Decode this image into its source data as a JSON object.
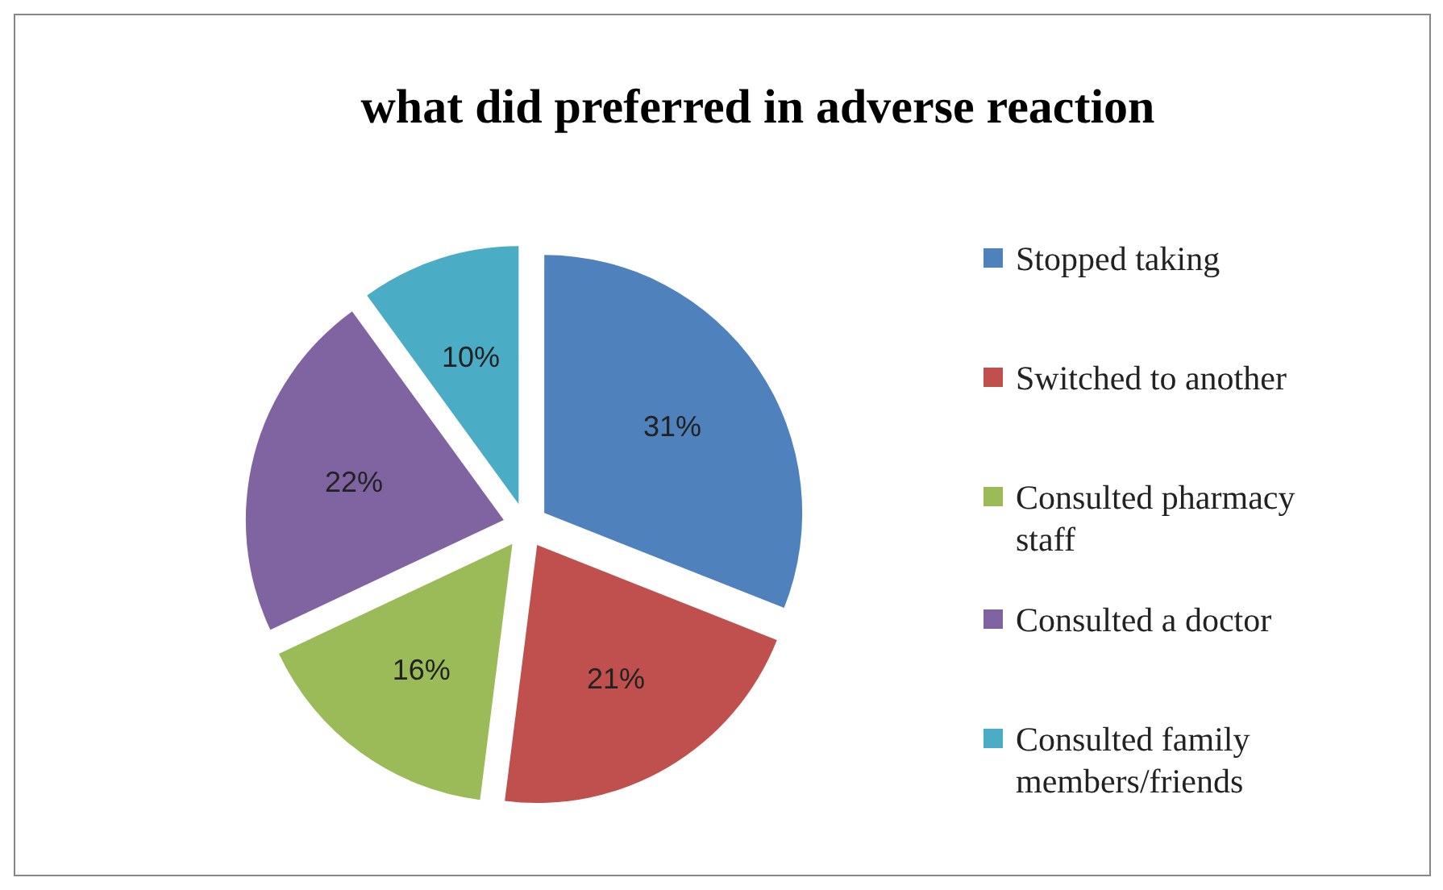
{
  "chart_data": {
    "type": "pie",
    "title": "what did preferred in adverse reaction",
    "categories": [
      "Stopped taking",
      "Switched to another",
      "Consulted pharmacy staff",
      "Consulted a doctor",
      "Consulted family members/friends"
    ],
    "values": [
      31,
      21,
      16,
      22,
      10
    ],
    "colors": [
      "#4f81bd",
      "#c0504d",
      "#9bbb59",
      "#8064a2",
      "#4bacc6"
    ],
    "value_labels": [
      "31%",
      "21%",
      "16%",
      "22%",
      "10%"
    ],
    "legend": "right"
  }
}
